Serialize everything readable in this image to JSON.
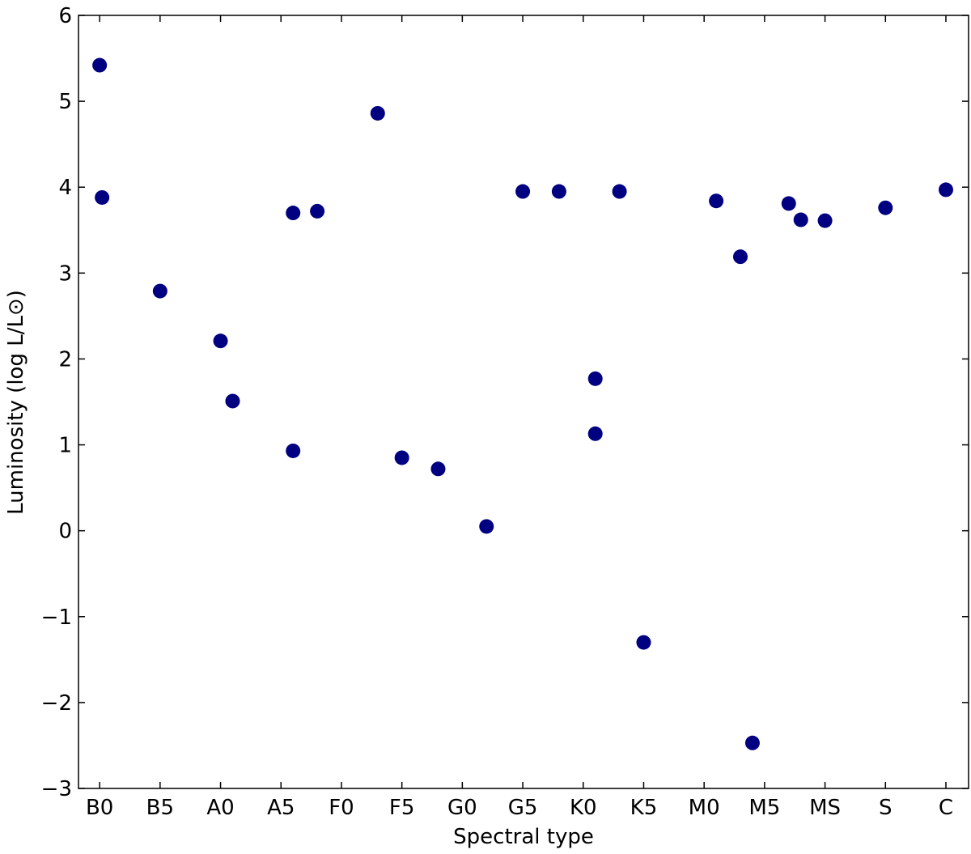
{
  "chart_data": {
    "type": "scatter",
    "xlabel": "Spectral type",
    "ylabel": "Luminosity (log L/L⊙)",
    "color": "#000080",
    "x": [
      0,
      0.04,
      1.0,
      2.0,
      2.2,
      3.2,
      3.2,
      3.6,
      4.6,
      5.0,
      5.6,
      6.4,
      7.0,
      7.6,
      8.2,
      8.2,
      8.6,
      9.0,
      10.2,
      10.6,
      10.8,
      11.4,
      11.6,
      12.0,
      13.0,
      14.0
    ],
    "values": [
      5.42,
      3.88,
      2.79,
      2.21,
      1.51,
      3.7,
      0.93,
      3.72,
      4.86,
      0.85,
      0.72,
      0.05,
      3.95,
      3.95,
      1.77,
      1.13,
      3.95,
      -1.3,
      3.84,
      3.19,
      -2.47,
      3.81,
      3.62,
      3.61,
      3.76,
      3.97
    ],
    "xlim": [
      -0.35,
      14.375
    ],
    "xticks": [
      {
        "value": 0,
        "label": "B0"
      },
      {
        "value": 1,
        "label": "B5"
      },
      {
        "value": 2,
        "label": "A0"
      },
      {
        "value": 3,
        "label": "A5"
      },
      {
        "value": 4,
        "label": "F0"
      },
      {
        "value": 5,
        "label": "F5"
      },
      {
        "value": 6,
        "label": "G0"
      },
      {
        "value": 7,
        "label": "G5"
      },
      {
        "value": 8,
        "label": "K0"
      },
      {
        "value": 9,
        "label": "K5"
      },
      {
        "value": 10,
        "label": "M0"
      },
      {
        "value": 11,
        "label": "M5"
      },
      {
        "value": 12,
        "label": "MS"
      },
      {
        "value": 13,
        "label": "S"
      },
      {
        "value": 14,
        "label": "C"
      }
    ],
    "ylim": [
      -3,
      6
    ],
    "yticks": [
      {
        "value": -3,
        "label": "−3"
      },
      {
        "value": -2,
        "label": "−2"
      },
      {
        "value": -1,
        "label": "−1"
      },
      0,
      1,
      2,
      3,
      4,
      5,
      6
    ]
  }
}
